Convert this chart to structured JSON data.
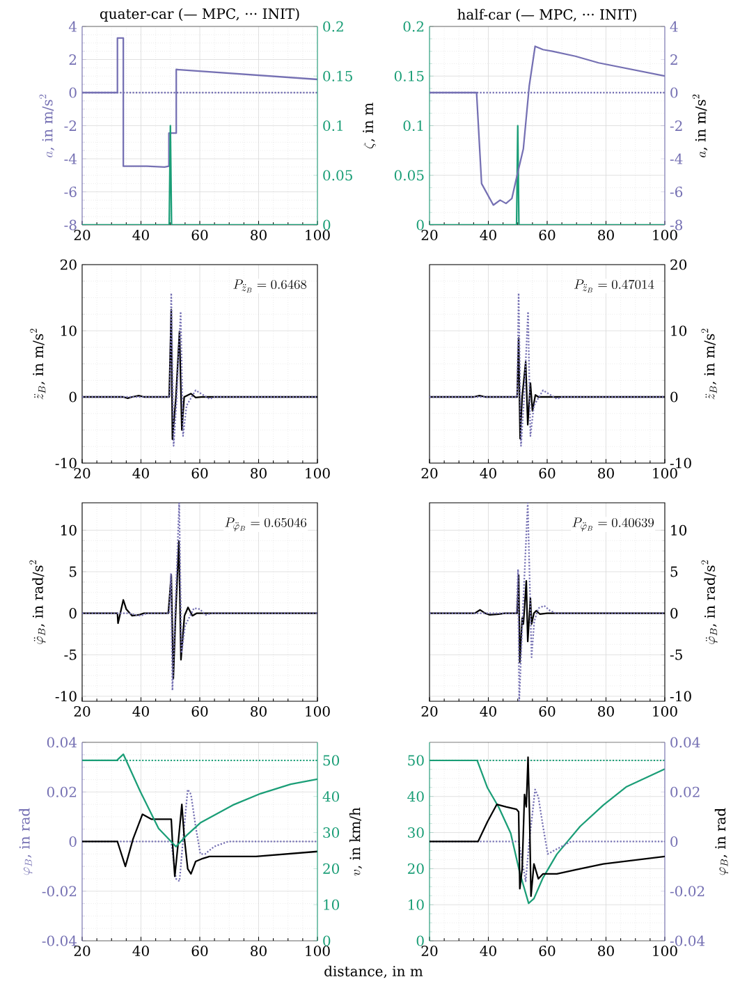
{
  "chart_data": [
    {
      "type": "line",
      "title": "quater-car (— MPC, ··· INIT)",
      "xlim": [
        20,
        100
      ],
      "xticks": [
        20,
        40,
        60,
        80,
        100
      ],
      "ylim": [
        -8,
        4
      ],
      "yticks": [
        -8,
        -6,
        -4,
        -2,
        0,
        2,
        4
      ],
      "ylabel": "a\\text{, in m/s}^2",
      "y2lim": [
        0,
        0.2
      ],
      "y2ticks": [
        0,
        0.05,
        0.1,
        0.15,
        0.2
      ],
      "y2label": "\\zeta\\text{, in m}",
      "grid": true,
      "series": [
        {
          "color": "#7570b3",
          "line_style": "solid",
          "x": [
            20,
            32,
            32,
            34,
            34,
            42,
            48,
            49.5,
            49.5,
            52,
            52,
            100
          ],
          "values": [
            0,
            0,
            3.3,
            3.3,
            -4.45,
            -4.45,
            -4.5,
            -4.45,
            -2.45,
            -2.45,
            1.4,
            0.8
          ]
        },
        {
          "color": "#7570b3",
          "line_style": "dotted",
          "x": [
            20,
            100
          ],
          "values": [
            0,
            0
          ]
        },
        {
          "color": "#1b9e77",
          "line_style": "solid",
          "axis": "y2",
          "x": [
            20,
            49.6,
            50,
            50.4,
            100
          ],
          "values": [
            0,
            0,
            0.1,
            0,
            0
          ]
        }
      ]
    },
    {
      "type": "line",
      "title": "half-car (— MPC, ··· INIT)",
      "xlim": [
        20,
        100
      ],
      "xticks": [
        20,
        40,
        60,
        80,
        100
      ],
      "ylim": [
        0,
        0.2
      ],
      "yticks": [
        0,
        0.05,
        0.1,
        0.15,
        0.2
      ],
      "y2lim": [
        -8,
        4
      ],
      "y2ticks": [
        -8,
        -6,
        -4,
        -2,
        0,
        2,
        4
      ],
      "y2label": "a\\text{, in m/s}^2",
      "grid": true,
      "series": [
        {
          "color": "#7570b3",
          "line_style": "solid",
          "axis": "y2",
          "x": [
            20,
            36,
            37.7,
            41.7,
            44,
            46,
            48,
            49.9,
            51.9,
            53.9,
            55.9,
            58.6,
            61.8,
            69.6,
            77.5,
            100
          ],
          "values": [
            0,
            0,
            -5.5,
            -6.8,
            -6.5,
            -6.7,
            -6.4,
            -4.9,
            -3.4,
            0.4,
            2.8,
            2.6,
            2.5,
            2.2,
            1.8,
            1.0
          ]
        },
        {
          "color": "#7570b3",
          "line_style": "dotted",
          "axis": "y2",
          "x": [
            20,
            100
          ],
          "values": [
            0,
            0
          ]
        },
        {
          "color": "#1b9e77",
          "line_style": "solid",
          "x": [
            20,
            49.6,
            50,
            50.4,
            100
          ],
          "values": [
            0,
            0,
            0.1,
            0,
            0
          ]
        }
      ]
    },
    {
      "type": "line",
      "xlim": [
        20,
        100
      ],
      "xticks": [
        20,
        40,
        60,
        80,
        100
      ],
      "ylim": [
        -10,
        20
      ],
      "yticks": [
        -10,
        0,
        10,
        20
      ],
      "ylabel": "\\ddot{z}_B\\text{, in m/s}^2",
      "grid": true,
      "annotations": [
        "P_{\\ddot{z}_B} = 0.6468"
      ],
      "series": [
        {
          "color": "#000000",
          "line_style": "solid",
          "x": [
            20,
            34,
            35.5,
            37,
            39.3,
            41,
            49.6,
            50.3,
            50.7,
            51.9,
            53.1,
            53.9,
            54.7,
            57,
            58.6,
            61,
            100
          ],
          "values": [
            0,
            0,
            -0.2,
            0,
            0.2,
            0,
            0,
            13.2,
            -6.4,
            0,
            9.9,
            -5,
            0,
            0.5,
            -0.1,
            0,
            0
          ]
        },
        {
          "color": "#7570b3",
          "line_style": "dotted",
          "x": [
            20,
            49.8,
            50.3,
            51.1,
            52.1,
            53.5,
            54.3,
            55.5,
            58.6,
            63.3,
            65,
            100
          ],
          "values": [
            0,
            0,
            15.7,
            -7.4,
            -0.6,
            12.9,
            -5.9,
            -1.3,
            1,
            -0.3,
            0,
            0
          ]
        }
      ]
    },
    {
      "type": "line",
      "xlim": [
        20,
        100
      ],
      "xticks": [
        20,
        40,
        60,
        80,
        100
      ],
      "y2lim": [
        -10,
        20
      ],
      "y2ticks": [
        -10,
        0,
        10,
        20
      ],
      "y2label": "\\ddot{z}_B\\text{, in m/s}^2",
      "grid": true,
      "annotations": [
        "P_{\\ddot{z}_B} = 0.47014"
      ],
      "series": [
        {
          "color": "#000000",
          "line_style": "solid",
          "axis": "y2",
          "x": [
            20,
            35,
            37,
            39,
            49.8,
            50.3,
            50.8,
            51.5,
            52.7,
            53.4,
            54.3,
            55,
            56,
            57,
            100
          ],
          "values": [
            0,
            0,
            0.2,
            0,
            0,
            8.9,
            -6.3,
            0,
            5.3,
            -4.2,
            2.1,
            -2.1,
            0.3,
            0,
            0
          ]
        },
        {
          "color": "#7570b3",
          "line_style": "dotted",
          "axis": "y2",
          "x": [
            20,
            49.8,
            50.3,
            51.1,
            52.1,
            53.5,
            54.3,
            55.5,
            58.6,
            63.3,
            65,
            100
          ],
          "values": [
            0,
            0,
            15.7,
            -7.4,
            -0.6,
            12.9,
            -5.9,
            -1.3,
            1,
            -0.3,
            0,
            0
          ]
        }
      ]
    },
    {
      "type": "line",
      "xlim": [
        20,
        100
      ],
      "xticks": [
        20,
        40,
        60,
        80,
        100
      ],
      "ylim": [
        -10.6,
        13.3
      ],
      "yticks": [
        -10,
        -5,
        0,
        5,
        10
      ],
      "ylabel": "\\ddot{\\varphi}_B\\text{, in rad/s}^2",
      "grid": true,
      "annotations": [
        "P_{\\ddot{\\varphi}_B} = 0.65046"
      ],
      "series": [
        {
          "color": "#000000",
          "line_style": "solid",
          "x": [
            20,
            32,
            32.2,
            34,
            35,
            37,
            39.4,
            41,
            49.3,
            50.3,
            51,
            51.8,
            52.9,
            53.6,
            54.8,
            56,
            57.5,
            59,
            100
          ],
          "values": [
            0,
            0,
            -1.2,
            1.6,
            0.5,
            -0.3,
            -0.2,
            0,
            0,
            4.6,
            -7.9,
            0,
            8.7,
            -5.6,
            -0.3,
            0.7,
            -0.3,
            0,
            0
          ]
        },
        {
          "color": "#7570b3",
          "line_style": "dotted",
          "x": [
            20,
            36,
            38,
            40,
            42,
            49.6,
            50.2,
            50.7,
            51.5,
            53,
            53.8,
            55,
            58,
            60,
            62,
            64,
            100
          ],
          "values": [
            0,
            0,
            -0.2,
            -0.3,
            0,
            0,
            4.8,
            -9.3,
            -1,
            13.3,
            -4.8,
            -1.5,
            0.6,
            0.5,
            -0.2,
            0,
            0
          ]
        }
      ]
    },
    {
      "type": "line",
      "xlim": [
        20,
        100
      ],
      "xticks": [
        20,
        40,
        60,
        80,
        100
      ],
      "y2lim": [
        -10.6,
        13.3
      ],
      "y2ticks": [
        -10,
        -5,
        0,
        5,
        10
      ],
      "y2label": "\\ddot{\\varphi}_B\\text{, in rad/s}^2",
      "grid": true,
      "annotations": [
        "P_{\\ddot{\\varphi}_B} = 0.40639"
      ],
      "series": [
        {
          "color": "#000000",
          "line_style": "solid",
          "axis": "y2",
          "x": [
            20,
            35.4,
            37.2,
            38.9,
            40.5,
            43.6,
            45.6,
            49.8,
            50.3,
            50.7,
            51.5,
            51.9,
            52.3,
            52.9,
            53.4,
            54.3,
            54.7,
            55.5,
            56.3,
            57.5,
            60,
            100
          ],
          "values": [
            0,
            0,
            0.4,
            0,
            -0.2,
            -0.1,
            0,
            0,
            4.6,
            -5.9,
            -0.6,
            -1.3,
            0.6,
            3.9,
            -3.4,
            1.8,
            -1.3,
            0,
            0.3,
            -0.1,
            0,
            0
          ]
        },
        {
          "color": "#7570b3",
          "line_style": "dotted",
          "axis": "y2",
          "x": [
            20,
            49.6,
            50.1,
            50.5,
            51.8,
            53.4,
            54.7,
            55.6,
            57,
            59,
            61,
            63,
            100
          ],
          "values": [
            0,
            0,
            5.3,
            -10.6,
            0.8,
            13.3,
            -5.3,
            -1,
            0.6,
            0.9,
            0.3,
            0,
            0
          ]
        }
      ]
    },
    {
      "type": "line",
      "xlim": [
        20,
        100
      ],
      "xticks": [
        20,
        40,
        60,
        80,
        100
      ],
      "xlabel": "distance, in m",
      "ylim": [
        -0.04,
        0.04
      ],
      "yticks": [
        -0.04,
        -0.02,
        0,
        0.02,
        0.04
      ],
      "ylabel": "\\varphi_B\\text{, in rad}",
      "y2lim": [
        0,
        55
      ],
      "y2ticks": [
        0,
        10,
        20,
        30,
        40,
        50
      ],
      "y2label": "v\\text{, in km/h}",
      "grid": true,
      "series": [
        {
          "color": "#7570b3",
          "line_style": "dotted",
          "x": [
            20,
            50.3,
            51.9,
            53.1,
            54.7,
            55.9,
            57,
            58.6,
            60.2,
            61.8,
            64.9,
            69.6,
            100
          ],
          "values": [
            0,
            0,
            -0.015,
            -0.016,
            0.006,
            0.021,
            0.019,
            0.006,
            -0.005,
            -0.005,
            -0.002,
            0,
            0
          ]
        },
        {
          "color": "#000000",
          "line_style": "solid",
          "x": [
            20,
            32,
            34.7,
            37.3,
            40.5,
            43.6,
            46.8,
            50.3,
            50.7,
            51.5,
            52.7,
            53.9,
            54.7,
            55.9,
            57,
            58.6,
            60.6,
            63.3,
            79.1,
            100
          ],
          "values": [
            0,
            0,
            -0.01,
            0.001,
            0.011,
            0.009,
            0.009,
            0.009,
            0,
            -0.014,
            0,
            0.015,
            0.002,
            -0.011,
            -0.013,
            -0.008,
            -0.007,
            -0.006,
            -0.006,
            -0.004
          ]
        },
        {
          "color": "#1b9e77",
          "line_style": "solid",
          "axis": "y2",
          "x": [
            20,
            31.8,
            34,
            39.7,
            46,
            51.9,
            55.5,
            60.2,
            71.2,
            80.7,
            90.9,
            100
          ],
          "values": [
            50,
            50,
            51.7,
            41.5,
            31.1,
            26.1,
            29.2,
            32.7,
            37.6,
            40.8,
            43.4,
            44.8
          ]
        },
        {
          "color": "#1b9e77",
          "line_style": "dotted",
          "axis": "y2",
          "x": [
            20,
            100
          ],
          "values": [
            50,
            50
          ]
        }
      ]
    },
    {
      "type": "line",
      "xlim": [
        20,
        100
      ],
      "xticks": [
        20,
        40,
        60,
        80,
        100
      ],
      "ylim": [
        0,
        55
      ],
      "yticks": [
        0,
        10,
        20,
        30,
        40,
        50
      ],
      "y2lim": [
        -0.04,
        0.04
      ],
      "y2ticks": [
        -0.04,
        -0.02,
        0,
        0.02,
        0.04
      ],
      "y2label": "\\varphi_B\\text{, in rad}",
      "grid": true,
      "series": [
        {
          "color": "#7570b3",
          "line_style": "dotted",
          "axis": "y2",
          "x": [
            20,
            50.3,
            52.7,
            53.9,
            55.9,
            57,
            58.6,
            60.2,
            63.3,
            68.1,
            100
          ],
          "values": [
            0,
            0,
            -0.016,
            0,
            0.021,
            0.018,
            0.006,
            -0.005,
            -0.003,
            0,
            0
          ]
        },
        {
          "color": "#000000",
          "line_style": "solid",
          "axis": "y2",
          "x": [
            20,
            36.5,
            39.7,
            42.9,
            46,
            49.6,
            50.3,
            50.7,
            51.5,
            52.3,
            52.9,
            53.5,
            54,
            54.5,
            55.5,
            57,
            58.6,
            63.3,
            71.2,
            79.1,
            100
          ],
          "values": [
            0,
            0,
            0.008,
            0.015,
            0.014,
            0.013,
            0.012,
            -0.019,
            -0.011,
            0.019,
            0.014,
            0.034,
            0.011,
            -0.022,
            -0.009,
            -0.015,
            -0.013,
            -0.013,
            -0.011,
            -0.009,
            -0.006
          ]
        },
        {
          "color": "#1b9e77",
          "line_style": "solid",
          "x": [
            20,
            36.2,
            39.7,
            43.6,
            47.6,
            50.7,
            53.7,
            55.5,
            58.6,
            63.3,
            71.2,
            79.1,
            87,
            100
          ],
          "values": [
            50,
            50,
            42.4,
            36.9,
            29.8,
            18.8,
            10.4,
            11.7,
            17.5,
            24,
            31.7,
            37.6,
            42.7,
            47.6
          ]
        },
        {
          "color": "#1b9e77",
          "line_style": "dotted",
          "x": [
            20,
            100
          ],
          "values": [
            50,
            50
          ]
        }
      ]
    }
  ]
}
